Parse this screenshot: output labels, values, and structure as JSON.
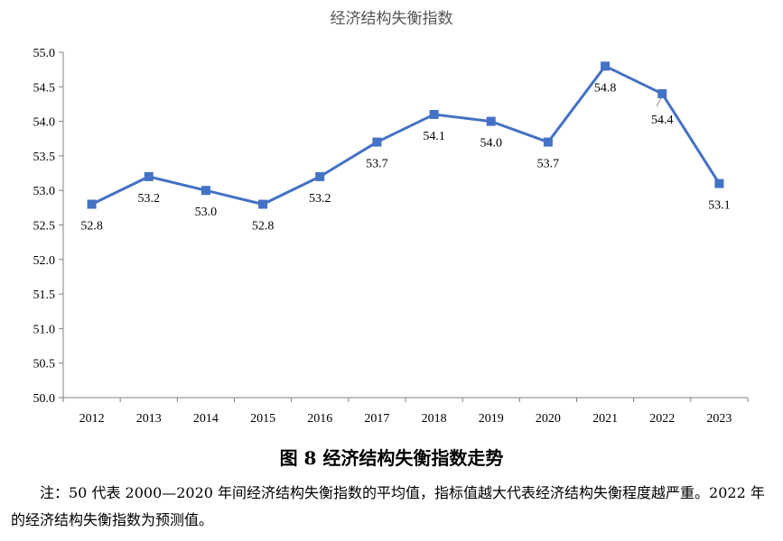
{
  "chart_data": {
    "type": "line",
    "title": "经济结构失衡指数",
    "categories": [
      "2012",
      "2013",
      "2014",
      "2015",
      "2016",
      "2017",
      "2018",
      "2019",
      "2020",
      "2021",
      "2022",
      "2023"
    ],
    "series": [
      {
        "values": [
          52.8,
          53.2,
          53.0,
          52.8,
          53.2,
          53.7,
          54.1,
          54.0,
          53.7,
          54.8,
          54.4,
          53.1
        ]
      }
    ],
    "data_labels": [
      "52.8",
      "53.2",
      "53.0",
      "52.8",
      "53.2",
      "53.7",
      "54.1",
      "54.0",
      "53.7",
      "54.8",
      "54.4",
      "53.1"
    ],
    "y_ticks": [
      "50.0",
      "50.5",
      "51.0",
      "51.5",
      "52.0",
      "52.5",
      "53.0",
      "53.5",
      "54.0",
      "54.5",
      "55.0"
    ],
    "ylim": [
      50.0,
      55.0
    ],
    "xlabel": "",
    "ylabel": "",
    "grid": false,
    "line_color": "#4472C4"
  },
  "caption": "图 8  经济结构失衡指数走势",
  "note": "注：50 代表 2000—2020 年间经济结构失衡指数的平均值，指标值越大代表经济结构失衡程度越严重。2022 年的经济结构失衡指数为预测值。"
}
